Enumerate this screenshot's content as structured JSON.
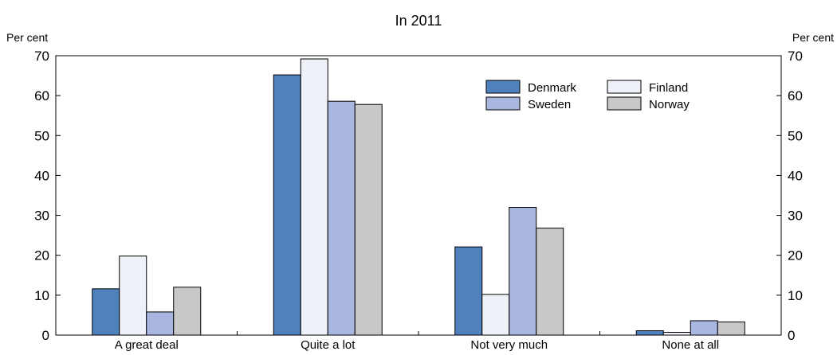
{
  "chart_data": {
    "type": "bar",
    "title": "In 2011",
    "ylabel_left": "Per cent",
    "ylabel_right": "Per cent",
    "ylim": [
      0,
      70
    ],
    "yticks": [
      0,
      10,
      20,
      30,
      40,
      50,
      60,
      70
    ],
    "categories": [
      "A great deal",
      "Quite a lot",
      "Not very much",
      "None at all"
    ],
    "series": [
      {
        "name": "Denmark",
        "color": "#4f81bd",
        "values": [
          11.6,
          65.2,
          22.1,
          1.1
        ]
      },
      {
        "name": "Finland",
        "color": "#eef1f8",
        "values": [
          19.8,
          69.2,
          10.2,
          0.7
        ]
      },
      {
        "name": "Sweden",
        "color": "#a9b7e0",
        "values": [
          5.8,
          58.6,
          32.0,
          3.6
        ]
      },
      {
        "name": "Norway",
        "color": "#c8c8c8",
        "values": [
          12.0,
          57.8,
          26.8,
          3.3
        ]
      }
    ],
    "legend_position": "top-right",
    "grid": false
  }
}
